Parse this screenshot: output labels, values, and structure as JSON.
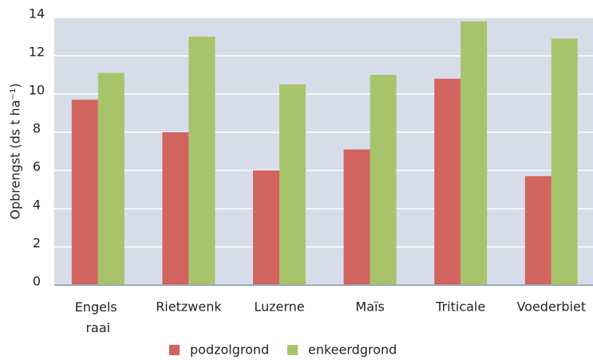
{
  "chart_data": {
    "type": "bar",
    "y_label": "Opbrengst (ds t ha⁻¹)",
    "categories": [
      "Engels raai",
      "Rietzwenk",
      "Luzerne",
      "Maïs",
      "Triticale",
      "Voederbiet"
    ],
    "series": [
      {
        "name": "podzolgrond",
        "color": "#d2645f",
        "values": [
          9.7,
          8.0,
          6.0,
          7.1,
          10.8,
          5.7
        ]
      },
      {
        "name": "enkeerdgrond",
        "color": "#a8c46a",
        "values": [
          11.1,
          13.0,
          10.5,
          11.0,
          13.8,
          12.9
        ]
      }
    ],
    "ylim": [
      0,
      14
    ],
    "yticks": [
      0,
      2,
      4,
      6,
      8,
      10,
      12,
      14
    ],
    "grid": true,
    "legend": "bottom"
  }
}
